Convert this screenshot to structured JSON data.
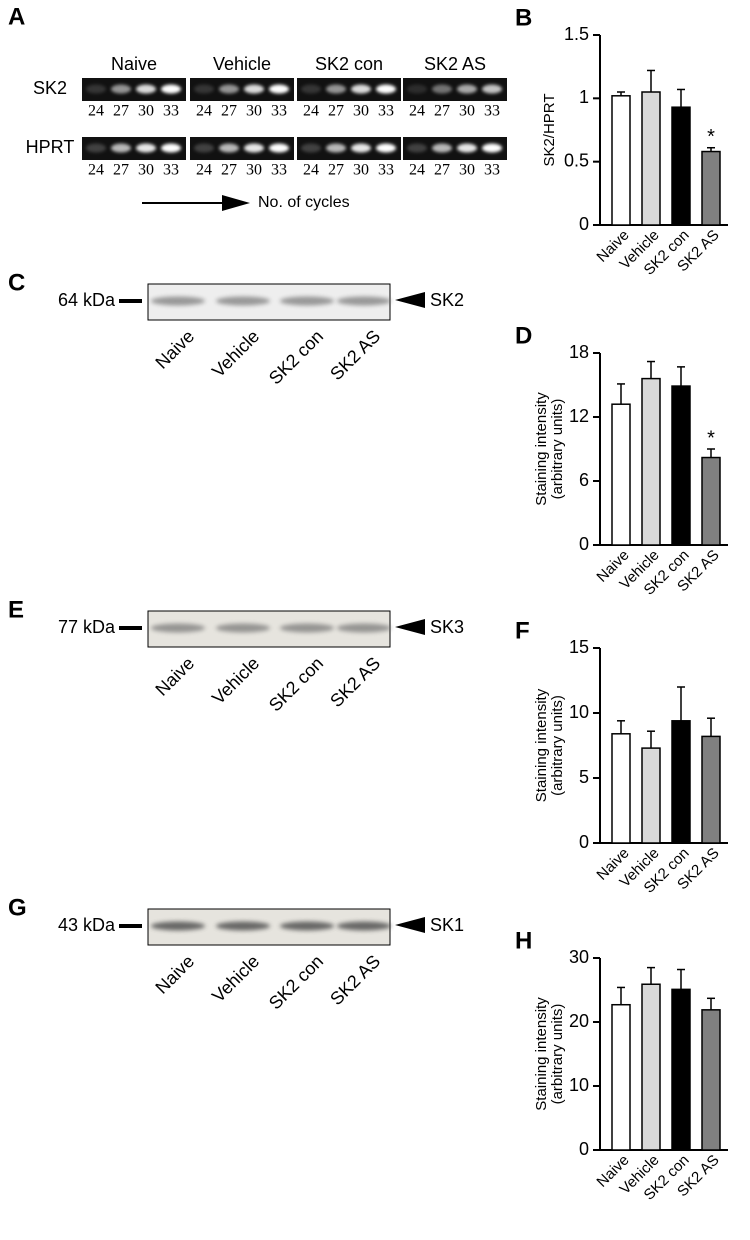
{
  "gel": {
    "label": "A",
    "lanes": [
      "Naive",
      "Vehicle",
      "SK2 con",
      "SK2 AS"
    ],
    "rows": [
      "SK2",
      "HPRT"
    ],
    "cycles": [
      24,
      27,
      30,
      33
    ],
    "arrow_label": "No. of cycles"
  },
  "blots": [
    {
      "label": "C",
      "marker": "64 kDa",
      "protein": "SK2",
      "lanes": [
        "Naive",
        "Vehicle",
        "SK2 con",
        "SK2 AS"
      ]
    },
    {
      "label": "E",
      "marker": "77 kDa",
      "protein": "SK3",
      "lanes": [
        "Naive",
        "Vehicle",
        "SK2 con",
        "SK2 AS"
      ]
    },
    {
      "label": "G",
      "marker": "43 kDa",
      "protein": "SK1",
      "lanes": [
        "Naive",
        "Vehicle",
        "SK2 con",
        "SK2 AS"
      ]
    }
  ],
  "chart_data": [
    {
      "type": "bar",
      "label": "B",
      "ylabel": [
        "SK2/HPRT"
      ],
      "categories": [
        "Naive",
        "Vehicle",
        "SK2 con",
        "SK2 AS"
      ],
      "values": [
        1.02,
        1.05,
        0.93,
        0.58
      ],
      "errors": [
        0.03,
        0.17,
        0.14,
        0.03
      ],
      "colors": [
        "#ffffff",
        "#d9d9d9",
        "#000000",
        "#808080"
      ],
      "ylim": [
        0,
        1.5
      ],
      "yticks": [
        0,
        0.5,
        1,
        1.5
      ],
      "annotations": [
        {
          "text": "*",
          "category": "SK2 AS"
        }
      ]
    },
    {
      "type": "bar",
      "label": "D",
      "ylabel": [
        "Staining intensity",
        "(arbitrary units)"
      ],
      "categories": [
        "Naive",
        "Vehicle",
        "SK2 con",
        "SK2 AS"
      ],
      "values": [
        13.2,
        15.6,
        14.9,
        8.2
      ],
      "errors": [
        1.9,
        1.6,
        1.8,
        0.8
      ],
      "colors": [
        "#ffffff",
        "#d9d9d9",
        "#000000",
        "#808080"
      ],
      "ylim": [
        0,
        18
      ],
      "yticks": [
        0,
        6,
        12,
        18
      ],
      "annotations": [
        {
          "text": "*",
          "category": "SK2 AS"
        }
      ]
    },
    {
      "type": "bar",
      "label": "F",
      "ylabel": [
        "Staining intensity",
        "(arbitrary units)"
      ],
      "categories": [
        "Naive",
        "Vehicle",
        "SK2 con",
        "SK2 AS"
      ],
      "values": [
        8.4,
        7.3,
        9.4,
        8.2
      ],
      "errors": [
        1.0,
        1.3,
        2.6,
        1.4
      ],
      "colors": [
        "#ffffff",
        "#d9d9d9",
        "#000000",
        "#808080"
      ],
      "ylim": [
        0,
        15
      ],
      "yticks": [
        0,
        5,
        10,
        15
      ],
      "annotations": []
    },
    {
      "type": "bar",
      "label": "H",
      "ylabel": [
        "Staining intensity",
        "(arbitrary units)"
      ],
      "categories": [
        "Naive",
        "Vehicle",
        "SK2 con",
        "SK2 AS"
      ],
      "values": [
        22.7,
        25.9,
        25.1,
        21.9
      ],
      "errors": [
        2.7,
        2.6,
        3.1,
        1.8
      ],
      "colors": [
        "#ffffff",
        "#d9d9d9",
        "#000000",
        "#808080"
      ],
      "ylim": [
        0,
        30
      ],
      "yticks": [
        0,
        10,
        20,
        30
      ],
      "annotations": []
    }
  ]
}
